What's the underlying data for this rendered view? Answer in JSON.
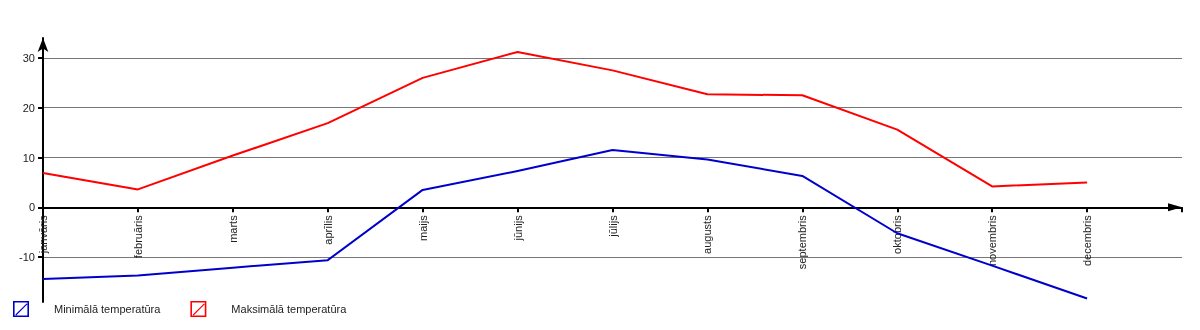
{
  "chart_data": {
    "type": "line",
    "categories": [
      "janvāris",
      "februāris",
      "marts",
      "aprīlis",
      "maijs",
      "jūnijs",
      "jūlijs",
      "augusts",
      "septembris",
      "oktobris",
      "novembris",
      "decembris"
    ],
    "series": [
      {
        "name": "Minimālā temperatūra",
        "color": "#0000cc",
        "values": [
          -14.4,
          -13.7,
          -12.1,
          -10.6,
          3.5,
          7.3,
          11.5,
          9.6,
          6.3,
          -5.2,
          -11.7,
          -18.3
        ]
      },
      {
        "name": "Maksimālā temperatūra",
        "color": "#ff0000",
        "values": [
          6.9,
          3.6,
          10.4,
          16.9,
          26,
          31.2,
          27.5,
          22.7,
          22.5,
          15.6,
          4.2,
          5
        ]
      }
    ],
    "ylim": [
      -19,
      34
    ],
    "yticks": [
      -10,
      0,
      10,
      20,
      30
    ],
    "grid": "y",
    "legend": "bottom left",
    "marker": "none",
    "line_style": "solid"
  }
}
